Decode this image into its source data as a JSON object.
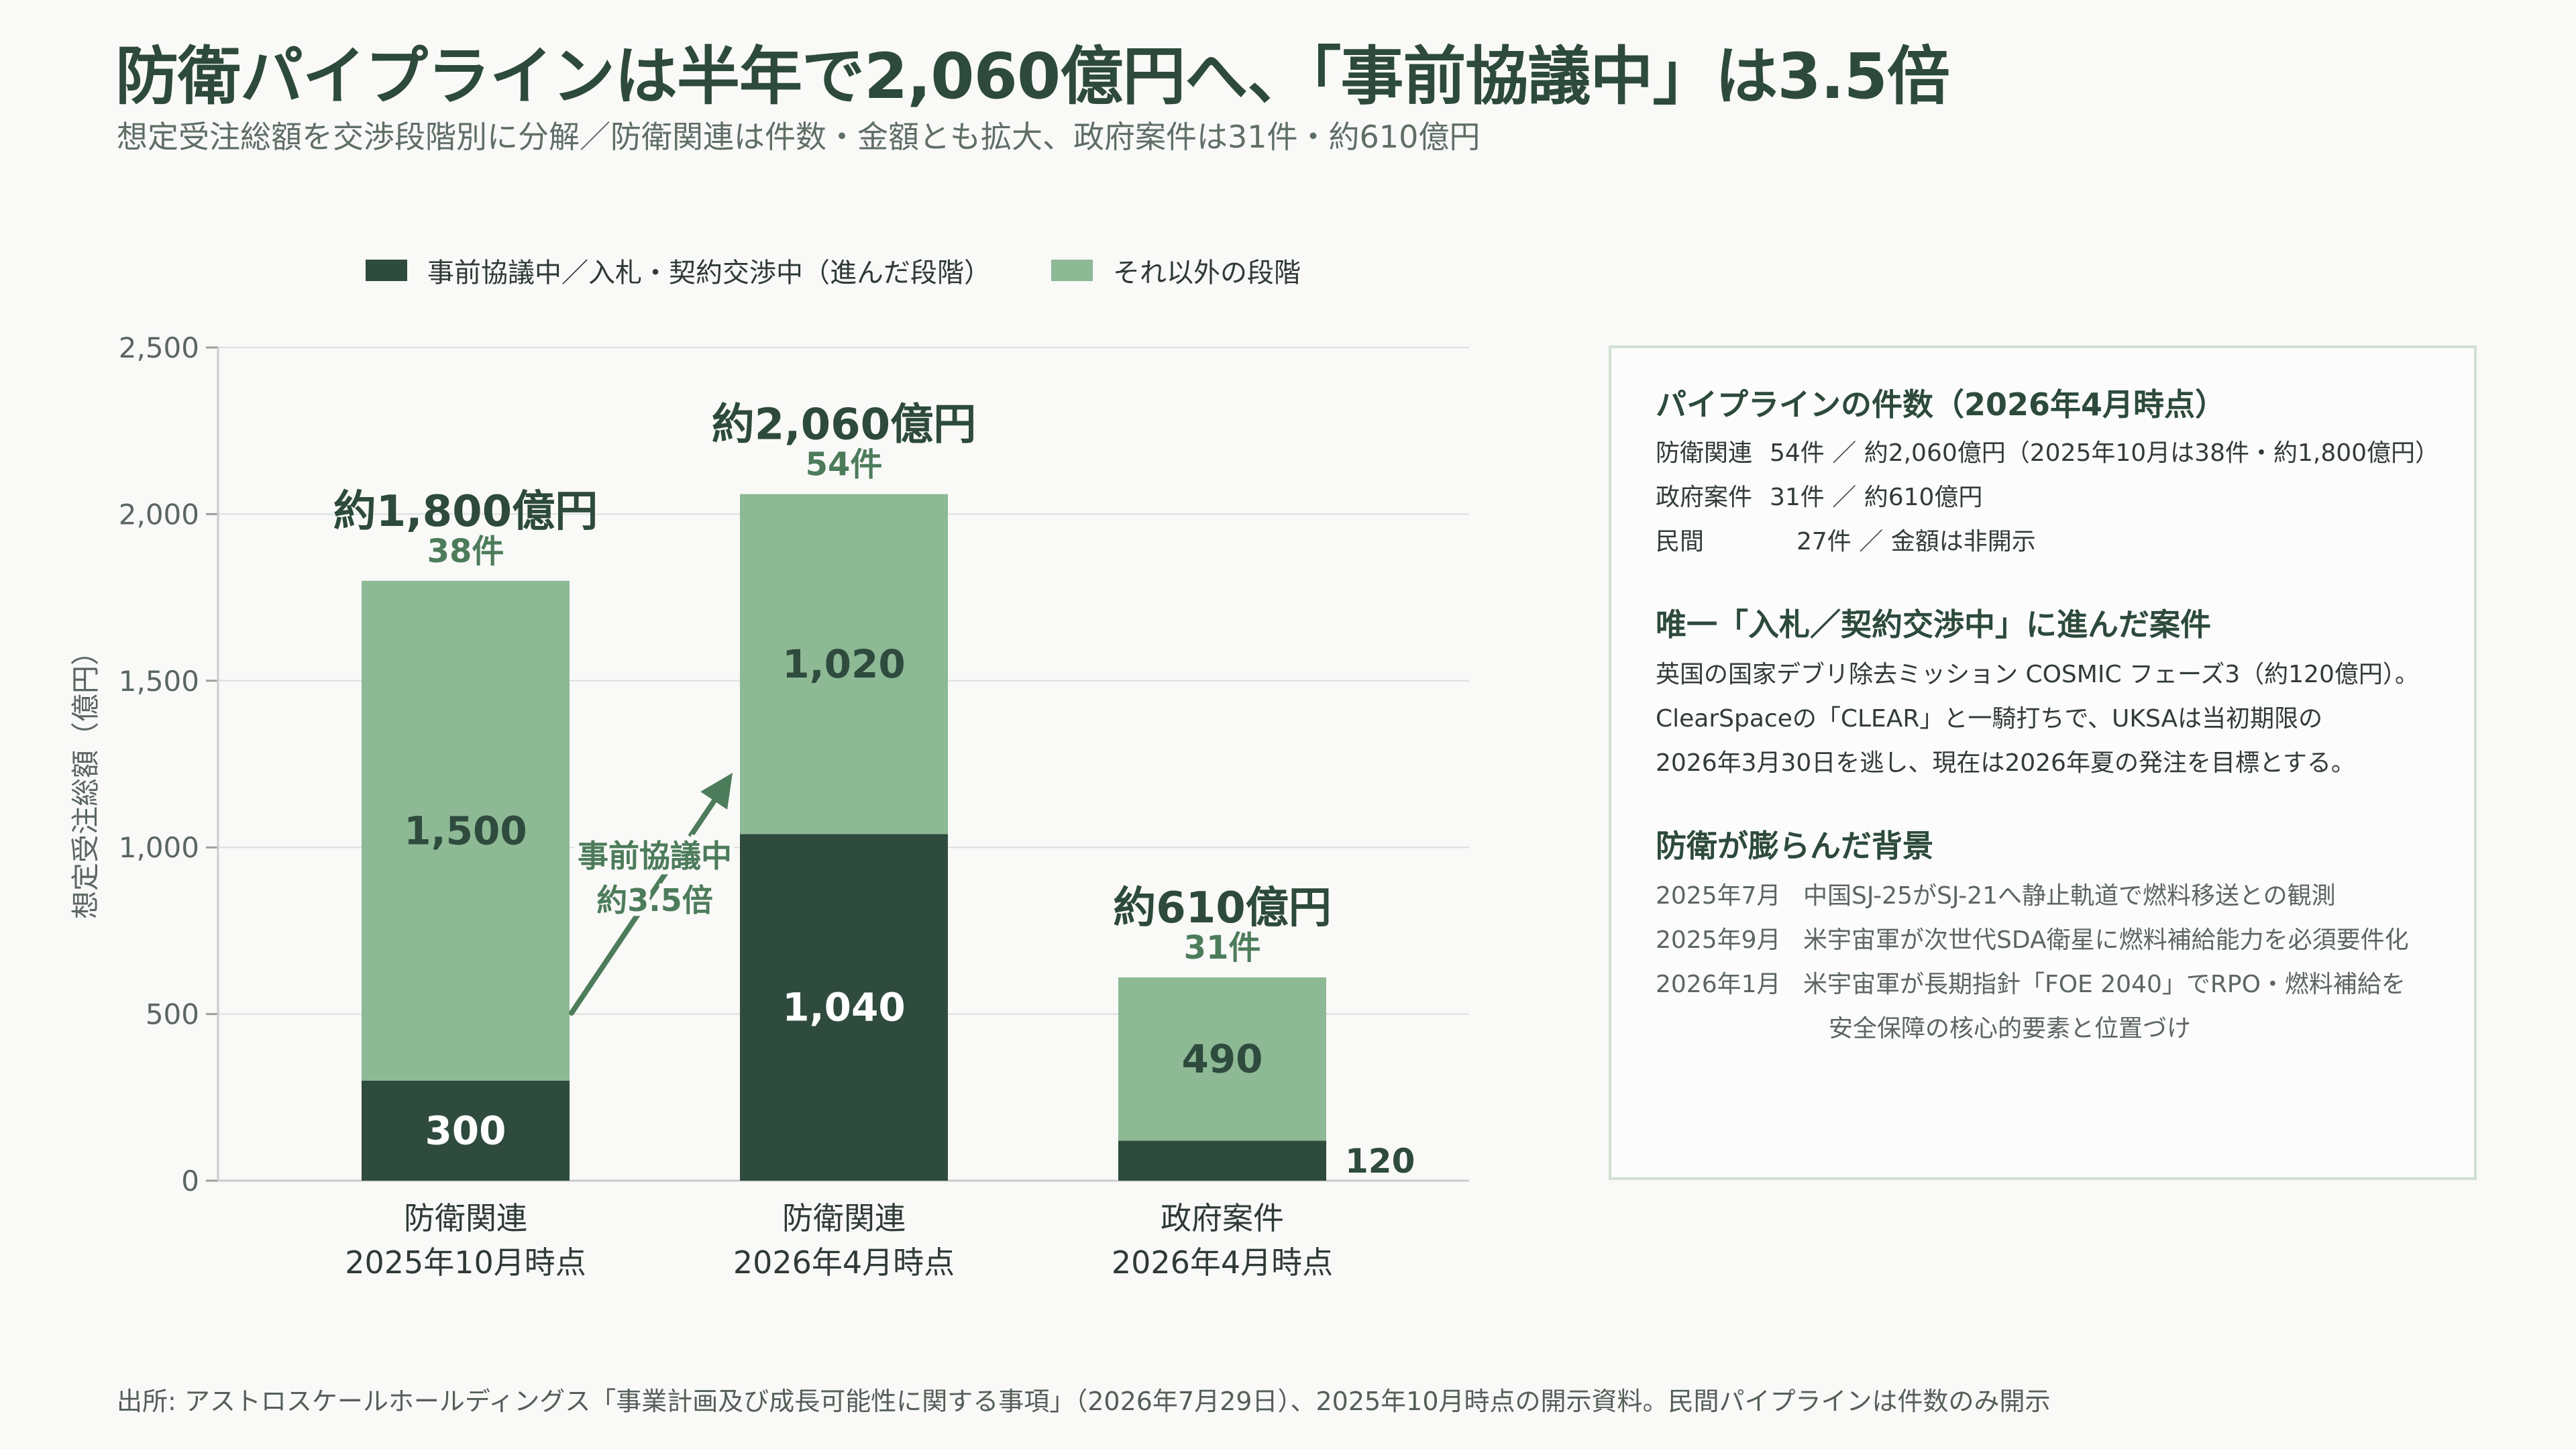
{
  "title": "防衛パイプラインは半年で2,060億円へ、「事前協議中」は3.5倍",
  "subtitle": "想定受注総額を交渉段階別に分解／防衛関連は件数・金額とも拡大、政府案件は31件・約610億円",
  "legend": {
    "advanced": "事前協議中／入札・契約交渉中（進んだ段階）",
    "other": "それ以外の段階"
  },
  "colors": {
    "advanced": "#2e4b3e",
    "other": "#8db995",
    "accent": "#4d7c5b",
    "grid": "#dcdfdd",
    "text": "#2d4a3c"
  },
  "chart_data": {
    "type": "bar",
    "stacked": true,
    "ylabel": "想定受注総額（億円）",
    "ylim": [
      0,
      2500
    ],
    "yticks": [
      "0",
      "500",
      "1,000",
      "1,500",
      "2,000",
      "2,500"
    ],
    "ytick_values": [
      0,
      500,
      1000,
      1500,
      2000,
      2500
    ],
    "categories": [
      [
        "防衛関連",
        "2025年10月時点"
      ],
      [
        "防衛関連",
        "2026年4月時点"
      ],
      [
        "政府案件",
        "2026年4月時点"
      ]
    ],
    "series": [
      {
        "name": "事前協議中／入札・契約交渉中（進んだ段階）",
        "values": [
          300,
          1040,
          120
        ],
        "labels": [
          "300",
          "1,040",
          "120"
        ]
      },
      {
        "name": "それ以外の段階",
        "values": [
          1500,
          1020,
          490
        ],
        "labels": [
          "1,500",
          "1,020",
          "490"
        ]
      }
    ],
    "totals": [
      "約1,800億円",
      "約2,060億円",
      "約610億円"
    ],
    "counts": [
      "38件",
      "54件",
      "31件"
    ],
    "annotation": {
      "text": [
        "事前協議中",
        "約3.5倍"
      ]
    }
  },
  "panel": {
    "section1": {
      "heading": "パイプラインの件数（2026年4月時点）",
      "rows": [
        {
          "label": "防衛関連",
          "value": "54件 ／ 約2,060億円（2025年10月は38件・約1,800億円）"
        },
        {
          "label": "政府案件",
          "value": "31件 ／ 約610億円"
        },
        {
          "label": "民間",
          "value": "27件 ／ 金額は非開示"
        }
      ]
    },
    "section2": {
      "heading": "唯一「入札／契約交渉中」に進んだ案件",
      "lines": [
        "英国の国家デブリ除去ミッション COSMIC フェーズ3（約120億円）。",
        "ClearSpaceの「CLEAR」と一騎打ちで、UKSAは当初期限の",
        "2026年3月30日を逃し、現在は2026年夏の発注を目標とする。"
      ]
    },
    "section3": {
      "heading": "防衛が膨らんだ背景",
      "events": [
        {
          "date": "2025年7月",
          "text": "中国SJ-25がSJ-21へ静止軌道で燃料移送との観測"
        },
        {
          "date": "2025年9月",
          "text": "米宇宙軍が次世代SDA衛星に燃料補給能力を必須要件化"
        },
        {
          "date": "2026年1月",
          "text": "米宇宙軍が長期指針「FOE 2040」でRPO・燃料補給を"
        }
      ],
      "continuation": "安全保障の核心的要素と位置づけ"
    }
  },
  "source": "出所: アストロスケールホールディングス「事業計画及び成長可能性に関する事項」（2026年7月29日）、2025年10月時点の開示資料。民間パイプラインは件数のみ開示"
}
